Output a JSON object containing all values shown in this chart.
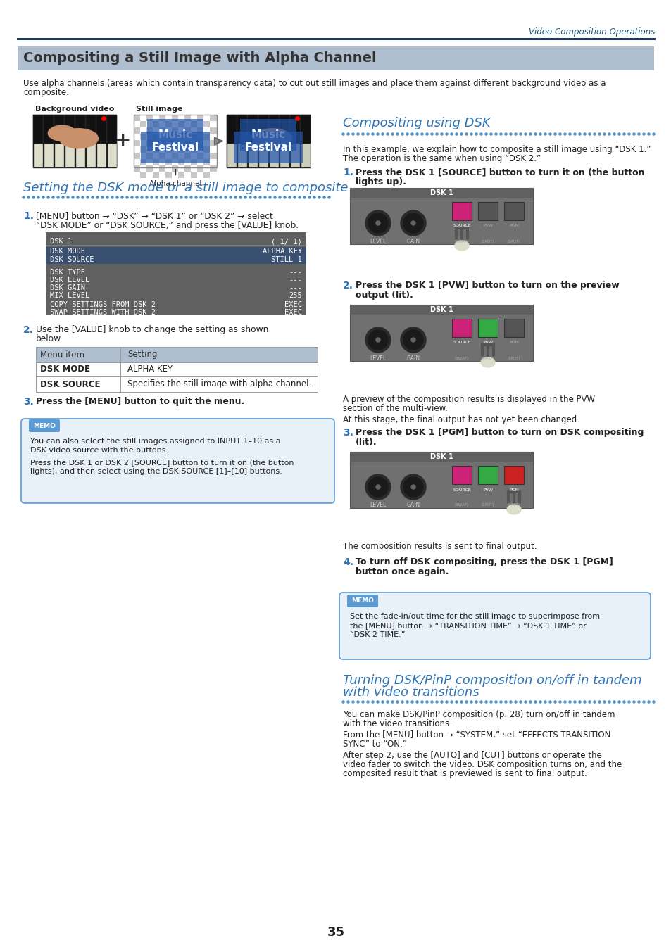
{
  "page_bg": "#ffffff",
  "header_text": "Video Composition Operations",
  "header_color": "#1a5276",
  "header_line_color": "#1e3a5f",
  "section1_title": "Compositing a Still Image with Alpha Channel",
  "section1_title_bg": "#b0bfd0",
  "section1_title_color": "#333333",
  "section1_desc1": "Use alpha channels (areas which contain transparency data) to cut out still images and place them against different background video as a",
  "section1_desc2": "composite.",
  "bg_video_label": "Background video",
  "still_image_label": "Still image",
  "alpha_channel_label": "Alpha channel",
  "section2_title": "Setting the DSK mode or a still image to composite",
  "section2_title_color": "#2e74b5",
  "section3_title": "Compositing using DSK",
  "section3_title_color": "#2e74b5",
  "step_color": "#2e74b5",
  "body_color": "#222222",
  "memo_bg": "#e8f0f8",
  "memo_border": "#5b9bd5",
  "memo_label_bg": "#5b9bd5",
  "memo_label_color": "#ffffff",
  "table_header_bg": "#b0bfd0",
  "table_border": "#999999",
  "screen_bg": "#606060",
  "screen_highlight_bg": "#3a5070",
  "dot_color": "#4a90c8",
  "section4_title_line1": "Turning DSK/PinP composition on/off in tandem",
  "section4_title_line2": "with video transitions",
  "section4_title_color": "#2e74b5",
  "knob_outer": "#2a2a2a",
  "knob_inner": "#1a1a1a",
  "panel_bg": "#707070",
  "panel_border": "#555555",
  "btn_source_lit": "#cc2277",
  "btn_pvw_lit": "#33aa44",
  "btn_pgm_lit": "#cc2222",
  "btn_unlit": "#555555",
  "btn_border": "#333333"
}
